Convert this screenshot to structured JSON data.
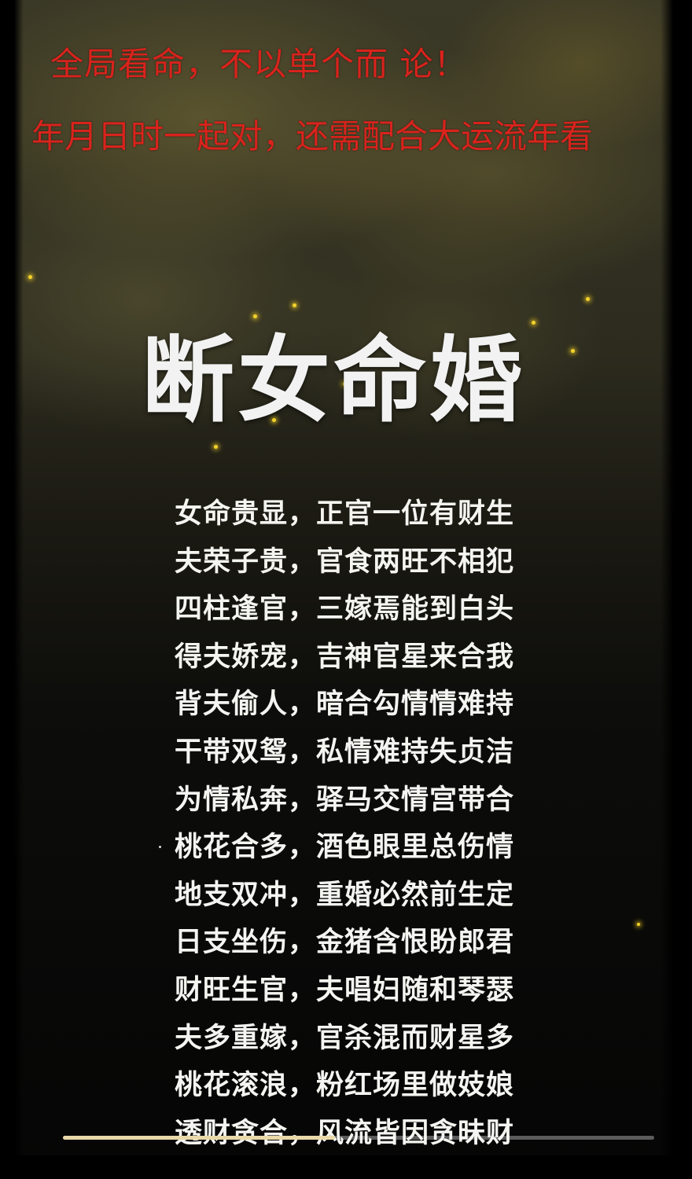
{
  "header": {
    "line1": "全局看命，不以单个而 论！",
    "line2": "年月日时一起对，还需配合大运流年看"
  },
  "title": "断女命婚",
  "verses": [
    "女命贵显，正官一位有财生",
    "夫荣子贵，官食两旺不相犯",
    "四柱逢官，三嫁焉能到白头",
    "得夫娇宠，吉神官星来合我",
    "背夫偷人，暗合勾情情难持",
    "干带双鸳，私情难持失贞洁",
    "为情私奔，驿马交情宫带合",
    "桃花合多，酒色眼里总伤情",
    "地支双冲，重婚必然前生定",
    "日支坐伤，金猪含恨盼郎君",
    "财旺生官，夫唱妇随和琴瑟",
    "夫多重嫁，官杀混而财星多",
    "桃花滚浪，粉红场里做妓娘",
    "透财贪合，风流皆因贪昧财"
  ],
  "progress": {
    "fraction": 0.46
  },
  "colors": {
    "header_text": "#d8231c",
    "title_text": "#f2f2f2",
    "verse_text": "#f4f4f0",
    "sparkle": "#f3d22a"
  }
}
